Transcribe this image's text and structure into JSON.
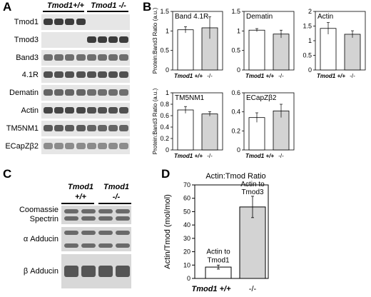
{
  "panel_a": {
    "letter": "A",
    "headers": [
      "Tmod1+/+",
      "Tmod1 -/-"
    ],
    "rows": [
      {
        "label": "Tmod1",
        "wt": 0.85,
        "ko": 0.0
      },
      {
        "label": "Tmod3",
        "wt": 0.0,
        "ko": 0.85
      },
      {
        "label": "Band3",
        "wt": 0.6,
        "ko": 0.6
      },
      {
        "label": "4.1R",
        "wt": 0.75,
        "ko": 0.75
      },
      {
        "label": "Dematin",
        "wt": 0.65,
        "ko": 0.6
      },
      {
        "label": "Actin",
        "wt": 0.8,
        "ko": 0.75
      },
      {
        "label": "TM5NM1",
        "wt": 0.7,
        "ko": 0.65
      },
      {
        "label": "ECapZβ2",
        "wt": 0.45,
        "ko": 0.45
      }
    ]
  },
  "panel_b": {
    "letter": "B",
    "ylabel": "Protein:Band3 Ratio (a.u.)",
    "xlabels": [
      "Tmod1 +/+",
      "-/-"
    ],
    "charts": [
      {
        "title": "Band 4.1R",
        "values": [
          1.03,
          1.08
        ],
        "errors": [
          0.08,
          0.28
        ],
        "ylim": [
          0,
          1.5
        ],
        "ticks": [
          "0",
          "0.5",
          "1",
          "1.5"
        ]
      },
      {
        "title": "Dematin",
        "values": [
          1.02,
          0.92
        ],
        "errors": [
          0.04,
          0.1
        ],
        "ylim": [
          0,
          1.5
        ],
        "ticks": [
          "0",
          "0.5",
          "1",
          "1.5"
        ]
      },
      {
        "title": "Actin",
        "values": [
          1.42,
          1.22
        ],
        "errors": [
          0.2,
          0.12
        ],
        "ylim": [
          0,
          2
        ],
        "ticks": [
          "0",
          "0.5",
          "1",
          "1.5",
          "2"
        ]
      },
      {
        "title": "TM5NM1",
        "values": [
          0.7,
          0.63
        ],
        "errors": [
          0.06,
          0.04
        ],
        "ylim": [
          0,
          1
        ],
        "ticks": [
          "0",
          "0.2",
          "0.4",
          "0.6",
          "0.8",
          "1"
        ]
      },
      {
        "title": "ECapZβ2",
        "values": [
          0.34,
          0.41
        ],
        "errors": [
          0.05,
          0.07
        ],
        "ylim": [
          0,
          0.6
        ],
        "ticks": [
          "0",
          "0.2",
          "0.4",
          "0.6"
        ]
      }
    ]
  },
  "panel_c": {
    "letter": "C",
    "headers": [
      [
        "Tmod1",
        "+/+"
      ],
      [
        "Tmod1",
        "-/-"
      ]
    ],
    "rows": [
      {
        "label1": "Coomassie",
        "label2": "Spectrin"
      },
      {
        "label1": "α Adducin",
        "label2": ""
      },
      {
        "label1": "β Adducin",
        "label2": ""
      }
    ]
  },
  "chart_data": {
    "type": "bar",
    "title": "Actin:Tmod Ratio",
    "ylabel": "Actin/Tmod (mol/mol)",
    "categories": [
      "Tmod1 +/+",
      "-/-"
    ],
    "values": [
      8.5,
      53.5
    ],
    "errors": [
      1.5,
      8
    ],
    "ylim": [
      0,
      70
    ],
    "yticks": [
      "0",
      "10",
      "20",
      "30",
      "40",
      "50",
      "60",
      "70"
    ],
    "annotations": [
      "Actin to Tmod1",
      "Actin to Tmod3"
    ],
    "letter": "D",
    "colors": {
      "wt": "#ffffff",
      "ko": "#d3d3d3"
    }
  }
}
